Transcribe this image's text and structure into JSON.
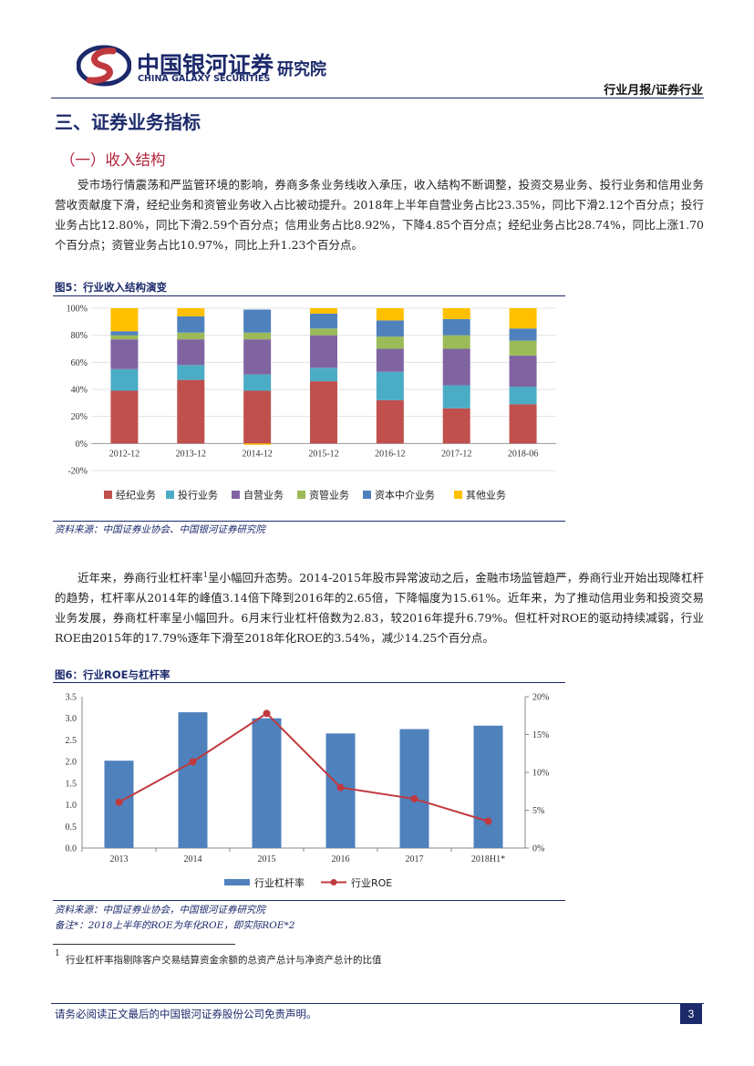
{
  "header": {
    "brand_cn": "中国银河证券",
    "brand_en": "CHINA GALAXY SECURITIES",
    "brand_inst": "研究院",
    "doc_type": "行业月报/证券行业"
  },
  "section_title": "三、证券业务指标",
  "sub_title": "（一）收入结构",
  "para1": "受市场行情震荡和严监管环境的影响，券商多条业务线收入承压，收入结构不断调整，投资交易业务、投行业务和信用业务营收贡献度下滑，经纪业务和资管业务收入占比被动提升。2018年上半年自营业务占比23.35%，同比下滑2.12个百分点；投行业务占比12.80%，同比下滑2.59个百分点；信用业务占比8.92%，下降4.85个百分点；经纪业务占比28.74%，同比上涨1.70个百分点；资管业务占比10.97%，同比上升1.23个百分点。",
  "fig5": {
    "caption": "图5：行业收入结构演变",
    "source": "资料来源：中国证券业协会、中国银河证券研究院"
  },
  "para2_a": "近年来，券商行业杠杆率",
  "para2_sup": "1",
  "para2_b": "呈小幅回升态势。2014-2015年股市异常波动之后，金融市场监管趋严，券商行业开始出现降杠杆的趋势，杠杆率从2014年的峰值3.14倍下降到2016年的2.65倍，下降幅度为15.61%。近年来，为了推动信用业务和投资交易业务发展，券商杠杆率呈小幅回升。6月末行业杠杆倍数为2.83，较2016年提升6.79%。但杠杆对ROE的驱动持续减弱，行业ROE由2015年的17.79%逐年下滑至2018年化ROE的3.54%，减少14.25个百分点。",
  "fig6": {
    "caption": "图6：行业ROE与杠杆率",
    "source": "资料来源：中国证券业协会，中国银河证券研究院",
    "note": "备注*：2018上半年的ROE为年化ROE，即实际ROE*2"
  },
  "footnote": {
    "mark": "1",
    "text": "行业杠杆率指剔除客户交易结算资金余额的总资产总计与净资产总计的比值"
  },
  "footer": {
    "disclaimer": "请务必阅读正文最后的中国银河证券股份公司免责声明。",
    "page": "3"
  },
  "colors": {
    "brand_navy": "#1c2a6b",
    "brand_red": "#c0393e",
    "brokerage": "#c0504d",
    "ib": "#4bacc6",
    "proprietary": "#8064a2",
    "asset_mgmt": "#9bbb59",
    "capital_intermediary": "#4f81bd",
    "other": "#ffc000",
    "roe_line": "#c0393e"
  },
  "chart_data": [
    {
      "type": "bar",
      "stacked": true,
      "categories": [
        "2012-12",
        "2013-12",
        "2014-12",
        "2015-12",
        "2016-12",
        "2017-12",
        "2018-06"
      ],
      "series": [
        {
          "name": "经纪业务",
          "values": [
            39,
            47,
            39,
            46,
            32,
            26,
            29
          ]
        },
        {
          "name": "投行业务",
          "values": [
            16,
            11,
            12,
            10,
            21,
            17,
            13
          ]
        },
        {
          "name": "自营业务",
          "values": [
            22,
            19,
            26,
            24,
            17,
            27,
            23
          ]
        },
        {
          "name": "资管业务",
          "values": [
            3,
            5,
            5,
            5,
            9,
            10,
            11
          ]
        },
        {
          "name": "资本中介业务",
          "values": [
            3,
            12,
            17,
            11,
            12,
            12,
            9
          ]
        },
        {
          "name": "其他业务",
          "values": [
            17,
            6,
            0,
            4,
            9,
            8,
            15
          ]
        }
      ],
      "negative_extra": {
        "category": "2014-12",
        "series": "其他业务",
        "value": -1
      },
      "ylim": [
        -20,
        100
      ],
      "yticks": [
        "-20%",
        "0%",
        "20%",
        "40%",
        "60%",
        "80%",
        "100%"
      ],
      "legend_position": "bottom"
    },
    {
      "type": "bar+line",
      "categories": [
        "2013",
        "2014",
        "2015",
        "2016",
        "2017",
        "2018H1*"
      ],
      "series": [
        {
          "name": "行业杠杆率",
          "type": "bar",
          "axis": "left",
          "values": [
            2.02,
            3.14,
            3.0,
            2.65,
            2.75,
            2.83
          ]
        },
        {
          "name": "行业ROE",
          "type": "line",
          "axis": "right",
          "values": [
            6.05,
            11.4,
            17.79,
            8.0,
            6.5,
            3.54
          ]
        }
      ],
      "y_left": {
        "lim": [
          0,
          3.5
        ],
        "ticks": [
          "0.0",
          "0.5",
          "1.0",
          "1.5",
          "2.0",
          "2.5",
          "3.0",
          "3.5"
        ]
      },
      "y_right": {
        "lim": [
          0,
          20
        ],
        "ticks": [
          "0%",
          "5%",
          "10%",
          "15%",
          "20%"
        ]
      },
      "legend_position": "bottom"
    }
  ]
}
